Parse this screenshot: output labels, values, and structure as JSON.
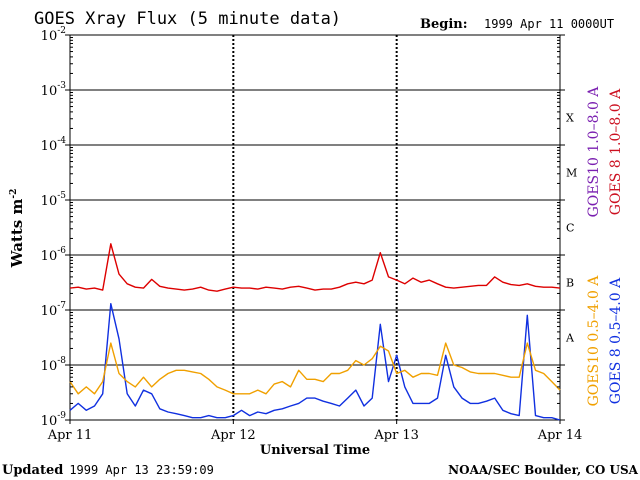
{
  "chart_data": {
    "type": "line",
    "title": "GOES Xray Flux (5 minute data)",
    "begin_label": "Begin:",
    "begin_value": "1999 Apr 11 0000UT",
    "ylabel": "Watts m",
    "ylabel_exp": "-2",
    "xlabel": "Universal Time",
    "yscale": "log",
    "ylim": [
      1e-09,
      0.01
    ],
    "xlim_days": [
      0,
      3
    ],
    "x_ticks": [
      {
        "day": 0,
        "label": "Apr 11"
      },
      {
        "day": 1,
        "label": "Apr 12"
      },
      {
        "day": 2,
        "label": "Apr 13"
      },
      {
        "day": 3,
        "label": "Apr 14"
      }
    ],
    "y_ticks": [
      {
        "exp": -2,
        "base": "10",
        "sup": "-2"
      },
      {
        "exp": -3,
        "base": "10",
        "sup": "-3"
      },
      {
        "exp": -4,
        "base": "10",
        "sup": "-4"
      },
      {
        "exp": -5,
        "base": "10",
        "sup": "-5"
      },
      {
        "exp": -6,
        "base": "10",
        "sup": "-6"
      },
      {
        "exp": -7,
        "base": "10",
        "sup": "-7"
      },
      {
        "exp": -8,
        "base": "10",
        "sup": "-8"
      },
      {
        "exp": -9,
        "base": "10",
        "sup": "-9"
      }
    ],
    "flare_classes": [
      {
        "label": "X",
        "exp": -4
      },
      {
        "label": "M",
        "exp": -5
      },
      {
        "label": "C",
        "exp": -6
      },
      {
        "label": "B",
        "exp": -7
      },
      {
        "label": "A",
        "exp": -8
      }
    ],
    "legend_top": [
      {
        "text": "GOES10 1.0–8.0 A",
        "color": "#7a1fb0"
      },
      {
        "text": "GOES 8  1.0–8.0 A",
        "color": "#cc1020"
      }
    ],
    "legend_bottom": [
      {
        "text": "GOES10 0.5–4.0 A",
        "color": "#f0a000"
      },
      {
        "text": "GOES 8  0.5–4.0 A",
        "color": "#1030e0"
      }
    ],
    "series": [
      {
        "name": "GOES 8 1.0–8.0 A",
        "color": "#dd0000",
        "x": [
          0,
          0.05,
          0.1,
          0.15,
          0.2,
          0.25,
          0.3,
          0.35,
          0.4,
          0.45,
          0.5,
          0.55,
          0.6,
          0.65,
          0.7,
          0.75,
          0.8,
          0.85,
          0.9,
          0.95,
          1.0,
          1.05,
          1.1,
          1.15,
          1.2,
          1.25,
          1.3,
          1.35,
          1.4,
          1.45,
          1.5,
          1.55,
          1.6,
          1.65,
          1.7,
          1.75,
          1.8,
          1.85,
          1.9,
          1.95,
          2.0,
          2.05,
          2.1,
          2.15,
          2.2,
          2.25,
          2.3,
          2.35,
          2.4,
          2.45,
          2.5,
          2.55,
          2.6,
          2.65,
          2.7,
          2.75,
          2.8,
          2.85,
          2.9,
          2.95,
          3.0
        ],
        "y": [
          2.5e-07,
          2.6e-07,
          2.4e-07,
          2.5e-07,
          2.3e-07,
          1.6e-06,
          4.5e-07,
          3e-07,
          2.6e-07,
          2.5e-07,
          3.6e-07,
          2.7e-07,
          2.5e-07,
          2.4e-07,
          2.3e-07,
          2.4e-07,
          2.6e-07,
          2.3e-07,
          2.2e-07,
          2.4e-07,
          2.6e-07,
          2.5e-07,
          2.5e-07,
          2.4e-07,
          2.6e-07,
          2.5e-07,
          2.4e-07,
          2.6e-07,
          2.7e-07,
          2.5e-07,
          2.3e-07,
          2.4e-07,
          2.4e-07,
          2.6e-07,
          3e-07,
          3.2e-07,
          3e-07,
          3.5e-07,
          1.1e-06,
          4e-07,
          3.5e-07,
          3e-07,
          3.8e-07,
          3.2e-07,
          3.5e-07,
          3e-07,
          2.6e-07,
          2.5e-07,
          2.6e-07,
          2.7e-07,
          2.8e-07,
          2.8e-07,
          4e-07,
          3.2e-07,
          2.9e-07,
          2.8e-07,
          3e-07,
          2.7e-07,
          2.6e-07,
          2.6e-07,
          2.5e-07
        ]
      },
      {
        "name": "GOES 8 0.5–4.0 A",
        "color": "#1030e0",
        "x": [
          0,
          0.05,
          0.1,
          0.15,
          0.2,
          0.25,
          0.3,
          0.35,
          0.4,
          0.45,
          0.5,
          0.55,
          0.6,
          0.65,
          0.7,
          0.75,
          0.8,
          0.85,
          0.9,
          0.95,
          1.0,
          1.05,
          1.1,
          1.15,
          1.2,
          1.25,
          1.3,
          1.35,
          1.4,
          1.45,
          1.5,
          1.55,
          1.6,
          1.65,
          1.7,
          1.75,
          1.8,
          1.85,
          1.9,
          1.95,
          2.0,
          2.05,
          2.1,
          2.15,
          2.2,
          2.25,
          2.3,
          2.35,
          2.4,
          2.45,
          2.5,
          2.55,
          2.6,
          2.65,
          2.7,
          2.75,
          2.8,
          2.85,
          2.9,
          2.95,
          3.0
        ],
        "y": [
          1.5e-09,
          2e-09,
          1.5e-09,
          1.8e-09,
          3e-09,
          1.3e-07,
          3e-08,
          3e-09,
          1.8e-09,
          3.5e-09,
          3e-09,
          1.6e-09,
          1.4e-09,
          1.3e-09,
          1.2e-09,
          1.1e-09,
          1.1e-09,
          1.2e-09,
          1.1e-09,
          1.1e-09,
          1.2e-09,
          1.5e-09,
          1.2e-09,
          1.4e-09,
          1.3e-09,
          1.5e-09,
          1.6e-09,
          1.8e-09,
          2e-09,
          2.5e-09,
          2.5e-09,
          2.2e-09,
          2e-09,
          1.8e-09,
          2.5e-09,
          3.5e-09,
          1.8e-09,
          2.5e-09,
          5.5e-08,
          5e-09,
          1.5e-08,
          4e-09,
          2e-09,
          2e-09,
          2e-09,
          2.5e-09,
          1.5e-08,
          4e-09,
          2.5e-09,
          2e-09,
          2e-09,
          2.2e-09,
          2.5e-09,
          1.5e-09,
          1.3e-09,
          1.2e-09,
          8e-08,
          1.2e-09,
          1.1e-09,
          1.1e-09,
          1e-09
        ]
      },
      {
        "name": "GOES10 0.5–4.0 A",
        "color": "#f0a000",
        "x": [
          0,
          0.05,
          0.1,
          0.15,
          0.2,
          0.25,
          0.3,
          0.35,
          0.4,
          0.45,
          0.5,
          0.55,
          0.6,
          0.65,
          0.7,
          0.75,
          0.8,
          0.85,
          0.9,
          0.95,
          1.0,
          1.05,
          1.1,
          1.15,
          1.2,
          1.25,
          1.3,
          1.35,
          1.4,
          1.45,
          1.5,
          1.55,
          1.6,
          1.65,
          1.7,
          1.75,
          1.8,
          1.85,
          1.9,
          1.95,
          2.0,
          2.05,
          2.1,
          2.15,
          2.2,
          2.25,
          2.3,
          2.35,
          2.4,
          2.45,
          2.5,
          2.55,
          2.6,
          2.65,
          2.7,
          2.75,
          2.8,
          2.85,
          2.9,
          2.95,
          3.0
        ],
        "y": [
          5e-09,
          3e-09,
          4e-09,
          3e-09,
          5e-09,
          2.5e-08,
          7e-09,
          5e-09,
          4e-09,
          6e-09,
          4e-09,
          5.5e-09,
          7e-09,
          8e-09,
          8e-09,
          7.5e-09,
          7e-09,
          5.5e-09,
          4e-09,
          3.5e-09,
          3e-09,
          3e-09,
          3e-09,
          3.5e-09,
          3e-09,
          4.5e-09,
          5e-09,
          4e-09,
          8e-09,
          5.5e-09,
          5.5e-09,
          5e-09,
          7e-09,
          7e-09,
          8e-09,
          1.2e-08,
          1e-08,
          1.3e-08,
          2.2e-08,
          1.8e-08,
          7e-09,
          8e-09,
          6e-09,
          7e-09,
          7e-09,
          6.5e-09,
          2.5e-08,
          1e-08,
          9e-09,
          7.5e-09,
          7e-09,
          7e-09,
          7e-09,
          6.5e-09,
          6e-09,
          6e-09,
          2.5e-08,
          8e-09,
          7e-09,
          5e-09,
          3.5e-09
        ]
      }
    ]
  },
  "footer": {
    "updated_label": "Updated",
    "updated_value": "1999 Apr 13 23:59:09",
    "credit": "NOAA/SEC Boulder, CO USA"
  }
}
